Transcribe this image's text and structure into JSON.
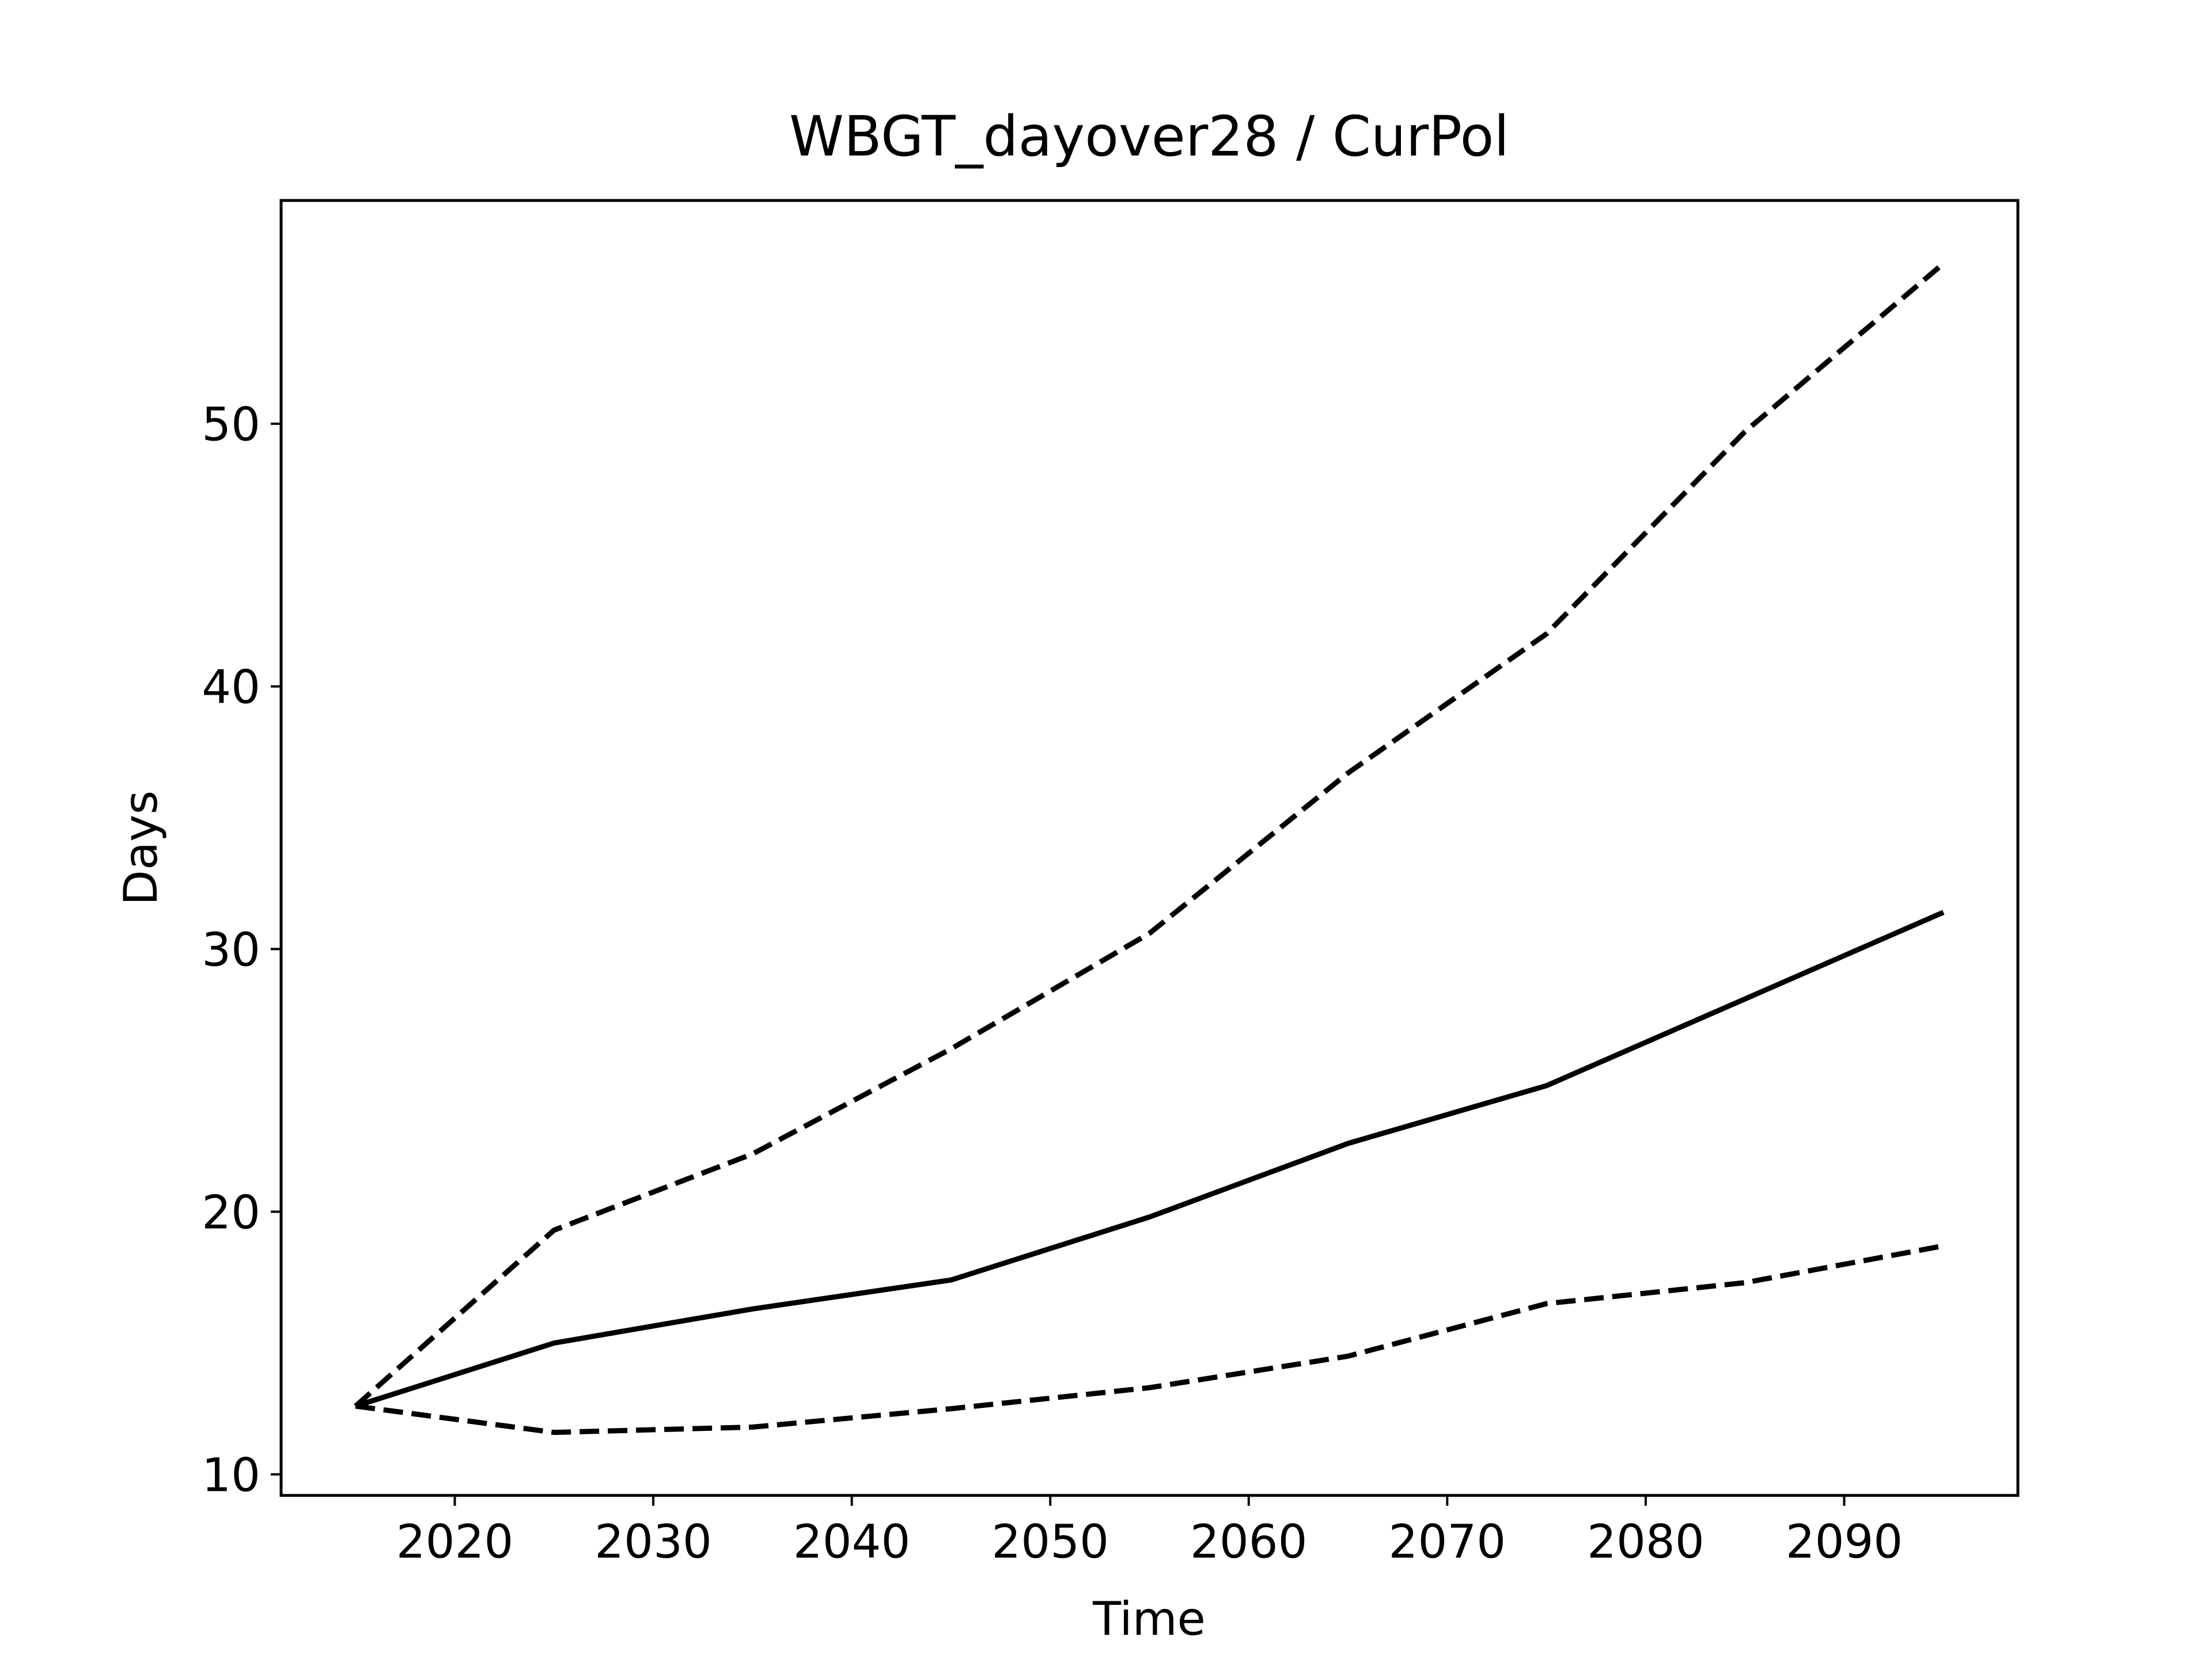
{
  "chart_data": {
    "type": "line",
    "title": "WBGT_dayover28 / CurPol",
    "xlabel": "Time",
    "ylabel": "Days",
    "xlim": [
      2011.25,
      2098.75
    ],
    "ylim": [
      9.2,
      58.5
    ],
    "xticks": [
      2020,
      2030,
      2040,
      2050,
      2060,
      2070,
      2080,
      2090
    ],
    "yticks": [
      10,
      20,
      30,
      40,
      50
    ],
    "grid": false,
    "legend": "none",
    "x": [
      2015,
      2025,
      2035,
      2045,
      2055,
      2065,
      2075,
      2085,
      2095
    ],
    "series": [
      {
        "style": "solid",
        "color": "#000000",
        "values": [
          12.6,
          15.0,
          16.3,
          17.4,
          19.8,
          22.6,
          24.8,
          28.1,
          31.4
        ]
      },
      {
        "style": "dashed",
        "color": "#000000",
        "values": [
          12.6,
          19.3,
          22.2,
          26.2,
          30.6,
          36.7,
          42.0,
          49.7,
          56.1
        ]
      },
      {
        "style": "dashed",
        "color": "#000000",
        "values": [
          12.6,
          11.6,
          11.8,
          12.5,
          13.3,
          14.5,
          16.5,
          17.3,
          18.7
        ]
      }
    ]
  }
}
